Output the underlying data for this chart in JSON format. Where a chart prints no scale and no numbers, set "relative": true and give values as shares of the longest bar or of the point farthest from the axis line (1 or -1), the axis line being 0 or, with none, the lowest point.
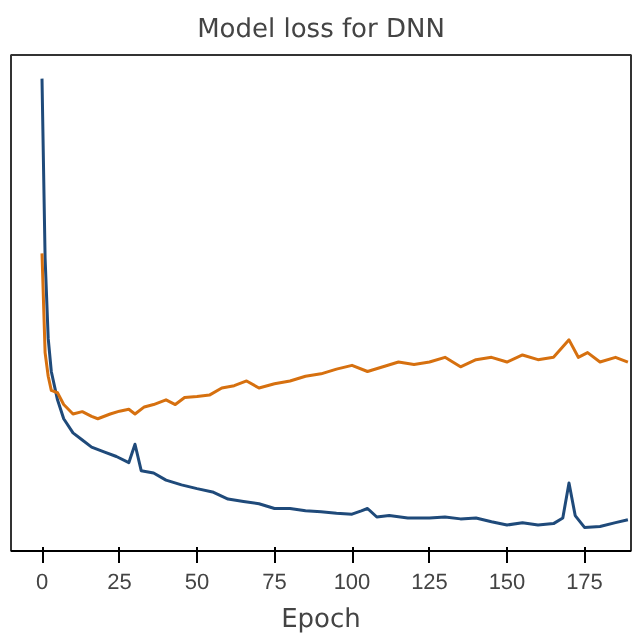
{
  "chart_data": {
    "type": "line",
    "title": "Model loss for DNN",
    "xlabel": "Epoch",
    "relative": true,
    "xlim": [
      -10,
      190
    ],
    "xticks": [
      0,
      25,
      50,
      75,
      100,
      125,
      150,
      175
    ],
    "grid": false,
    "series": [
      {
        "color": "#1f4a7a",
        "x": [
          0,
          1,
          2,
          3,
          5,
          7,
          10,
          13,
          16,
          20,
          24,
          28,
          30,
          32,
          36,
          40,
          45,
          50,
          55,
          60,
          65,
          70,
          75,
          80,
          85,
          90,
          95,
          100,
          103,
          105,
          108,
          112,
          118,
          125,
          130,
          135,
          140,
          145,
          150,
          155,
          160,
          165,
          168,
          170,
          172,
          175,
          180,
          185,
          189
        ],
        "values": [
          1.0,
          0.62,
          0.45,
          0.38,
          0.32,
          0.28,
          0.25,
          0.235,
          0.22,
          0.21,
          0.2,
          0.187,
          0.226,
          0.17,
          0.165,
          0.15,
          0.14,
          0.132,
          0.125,
          0.11,
          0.105,
          0.1,
          0.09,
          0.09,
          0.085,
          0.083,
          0.08,
          0.078,
          0.085,
          0.09,
          0.072,
          0.075,
          0.07,
          0.07,
          0.072,
          0.068,
          0.07,
          0.062,
          0.055,
          0.06,
          0.055,
          0.058,
          0.07,
          0.144,
          0.075,
          0.05,
          0.052,
          0.06,
          0.066
        ]
      },
      {
        "color": "#d6700f",
        "x": [
          0,
          1,
          2,
          3,
          5,
          7,
          10,
          13,
          16,
          18,
          22,
          25,
          28,
          30,
          33,
          36,
          40,
          43,
          46,
          50,
          54,
          58,
          62,
          66,
          70,
          75,
          80,
          85,
          90,
          95,
          100,
          105,
          110,
          115,
          120,
          125,
          130,
          135,
          140,
          145,
          150,
          155,
          160,
          165,
          170,
          173,
          176,
          180,
          185,
          189
        ],
        "values": [
          0.63,
          0.42,
          0.37,
          0.34,
          0.335,
          0.31,
          0.29,
          0.295,
          0.285,
          0.28,
          0.29,
          0.296,
          0.3,
          0.29,
          0.305,
          0.31,
          0.32,
          0.31,
          0.325,
          0.327,
          0.33,
          0.345,
          0.35,
          0.36,
          0.345,
          0.354,
          0.36,
          0.37,
          0.375,
          0.385,
          0.393,
          0.38,
          0.39,
          0.4,
          0.395,
          0.4,
          0.41,
          0.39,
          0.405,
          0.41,
          0.4,
          0.415,
          0.405,
          0.41,
          0.447,
          0.41,
          0.42,
          0.4,
          0.41,
          0.4
        ]
      }
    ]
  }
}
